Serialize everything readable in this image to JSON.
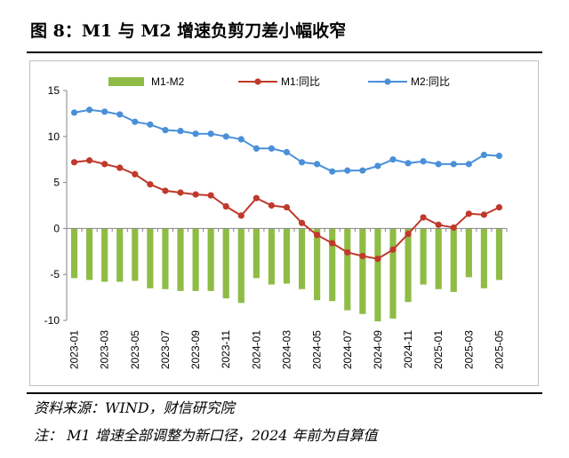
{
  "title": "图 8：M1 与 M2 增速负剪刀差小幅收窄",
  "source": "资料来源：WIND，财信研究院",
  "note": "注： M1 增速全部调整为新口径，2024 年前为自算值",
  "colors": {
    "m1_m2": "#8fbc45",
    "m1": "#c0392b",
    "m2": "#4a90d9"
  },
  "chart_data": {
    "type": "bar+line",
    "categories": [
      "2023-01",
      "2023-02",
      "2023-03",
      "2023-04",
      "2023-05",
      "2023-06",
      "2023-07",
      "2023-08",
      "2023-09",
      "2023-10",
      "2023-11",
      "2023-12",
      "2024-01",
      "2024-02",
      "2024-03",
      "2024-04",
      "2024-05",
      "2024-06",
      "2024-07",
      "2024-08",
      "2024-09",
      "2024-10",
      "2024-11",
      "2024-12",
      "2025-01",
      "2025-02",
      "2025-03",
      "2025-04",
      "2025-05"
    ],
    "tick_labels": [
      "2023-01",
      "2023-03",
      "2023-05",
      "2023-07",
      "2023-09",
      "2023-11",
      "2024-01",
      "2024-03",
      "2024-05",
      "2024-07",
      "2024-09",
      "2024-11",
      "2025-01",
      "2025-03",
      "2025-05"
    ],
    "ylim": [
      -10,
      15
    ],
    "yticks": [
      -10,
      -5,
      0,
      5,
      10,
      15
    ],
    "legend_position": "top",
    "series": [
      {
        "name": "M1-M2",
        "kind": "bar",
        "values": [
          -5.4,
          -5.6,
          -5.8,
          -5.8,
          -5.7,
          -6.5,
          -6.6,
          -6.8,
          -6.8,
          -6.8,
          -7.6,
          -8.1,
          -5.4,
          -6.1,
          -6.0,
          -6.6,
          -7.8,
          -7.9,
          -8.9,
          -9.3,
          -10.1,
          -9.8,
          -8.0,
          -6.1,
          -6.6,
          -6.9,
          -5.3,
          -6.5,
          -5.6
        ]
      },
      {
        "name": "M1:同比",
        "kind": "line",
        "values": [
          7.2,
          7.4,
          7.0,
          6.6,
          5.9,
          4.8,
          4.1,
          3.9,
          3.7,
          3.6,
          2.4,
          1.4,
          3.3,
          2.5,
          2.3,
          0.6,
          -0.7,
          -1.6,
          -2.6,
          -3.0,
          -3.3,
          -2.3,
          -0.6,
          1.2,
          0.4,
          0.1,
          1.6,
          1.5,
          2.3
        ]
      },
      {
        "name": "M2:同比",
        "kind": "line",
        "values": [
          12.6,
          12.9,
          12.7,
          12.4,
          11.6,
          11.3,
          10.7,
          10.6,
          10.3,
          10.3,
          10.0,
          9.7,
          8.7,
          8.7,
          8.3,
          7.2,
          7.0,
          6.2,
          6.3,
          6.3,
          6.8,
          7.5,
          7.1,
          7.3,
          7.0,
          7.0,
          7.0,
          8.0,
          7.9
        ]
      }
    ]
  }
}
